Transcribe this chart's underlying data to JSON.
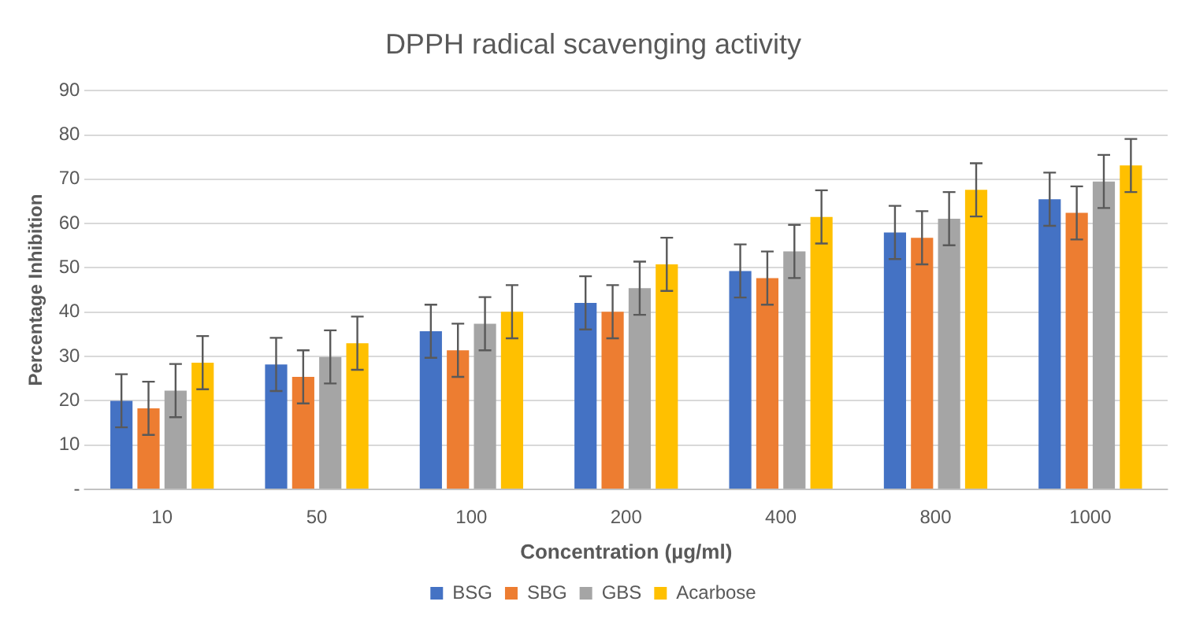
{
  "chart_data": {
    "type": "bar",
    "title": "DPPH radical scavenging activity",
    "xlabel": "Concentration (µg/ml)",
    "ylabel": "Percentage Inhibition",
    "categories": [
      "10",
      "50",
      "100",
      "200",
      "400",
      "800",
      "1000"
    ],
    "series": [
      {
        "name": "BSG",
        "color": "#4472c4",
        "values": [
          20,
          28.2,
          35.7,
          42.1,
          49.3,
          58,
          65.5
        ],
        "errors": [
          6,
          6,
          6,
          6,
          6,
          6,
          6
        ]
      },
      {
        "name": "SBG",
        "color": "#ed7d31",
        "values": [
          18.3,
          25.4,
          31.4,
          40.1,
          47.7,
          56.8,
          62.4
        ],
        "errors": [
          6,
          6,
          6,
          6,
          6,
          6,
          6
        ]
      },
      {
        "name": "GBS",
        "color": "#a5a5a5",
        "values": [
          22.3,
          29.9,
          37.4,
          45.4,
          53.7,
          61.1,
          69.5
        ],
        "errors": [
          6,
          6,
          6,
          6,
          6,
          6,
          6
        ]
      },
      {
        "name": "Acarbose",
        "color": "#ffc000",
        "values": [
          28.6,
          33,
          40.1,
          50.8,
          61.5,
          67.6,
          73.1
        ],
        "errors": [
          6,
          6,
          6,
          6,
          6,
          6,
          6
        ]
      }
    ],
    "ylim": [
      0,
      90
    ],
    "yticks": [
      {
        "value": 0,
        "label": "-"
      },
      10,
      20,
      30,
      40,
      50,
      60,
      70,
      80,
      90
    ],
    "grid": "y",
    "legend": "bottom"
  }
}
